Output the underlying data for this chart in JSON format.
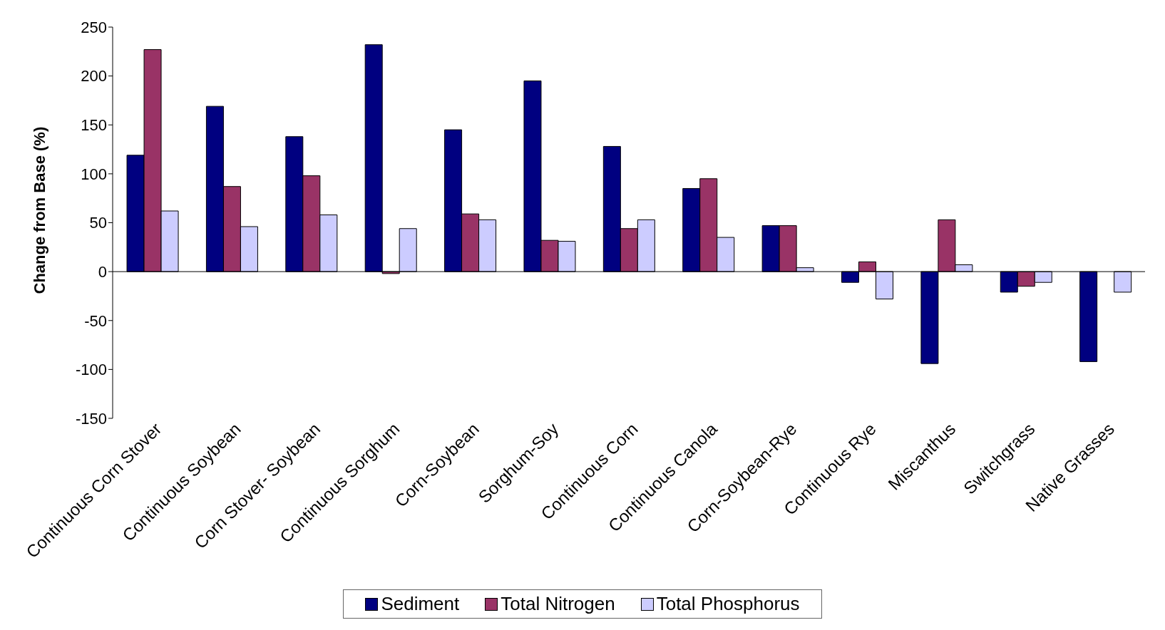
{
  "chart_data": {
    "type": "bar",
    "ylabel": "Change from Base (%)",
    "categories": [
      "Continuous Corn Stover",
      "Continuous Soybean",
      "Corn Stover- Soybean",
      "Continuous Sorghum",
      "Corn-Soybean",
      "Sorghum-Soy",
      "Continuous Corn",
      "Continuous Canola",
      "Corn-Soybean-Rye",
      "Continuous Rye",
      "Miscanthus",
      "Switchgrass",
      "Native Grasses"
    ],
    "series": [
      {
        "name": "Sediment",
        "color": "#000080",
        "values": [
          119,
          169,
          138,
          232,
          145,
          195,
          128,
          85,
          47,
          -11,
          -94,
          -21,
          -92
        ]
      },
      {
        "name": "Total Nitrogen",
        "color": "#993366",
        "values": [
          227,
          87,
          98,
          -2,
          59,
          32,
          44,
          95,
          47,
          10,
          53,
          -15,
          null
        ]
      },
      {
        "name": "Total Phosphorus",
        "color": "#ccccff",
        "values": [
          62,
          46,
          58,
          44,
          53,
          31,
          53,
          35,
          4,
          -28,
          7,
          -11,
          -21
        ]
      }
    ],
    "ylim": [
      -150,
      250
    ],
    "yticks": [
      -150,
      -100,
      -50,
      0,
      50,
      100,
      150,
      200,
      250
    ],
    "legend": "bottom"
  }
}
